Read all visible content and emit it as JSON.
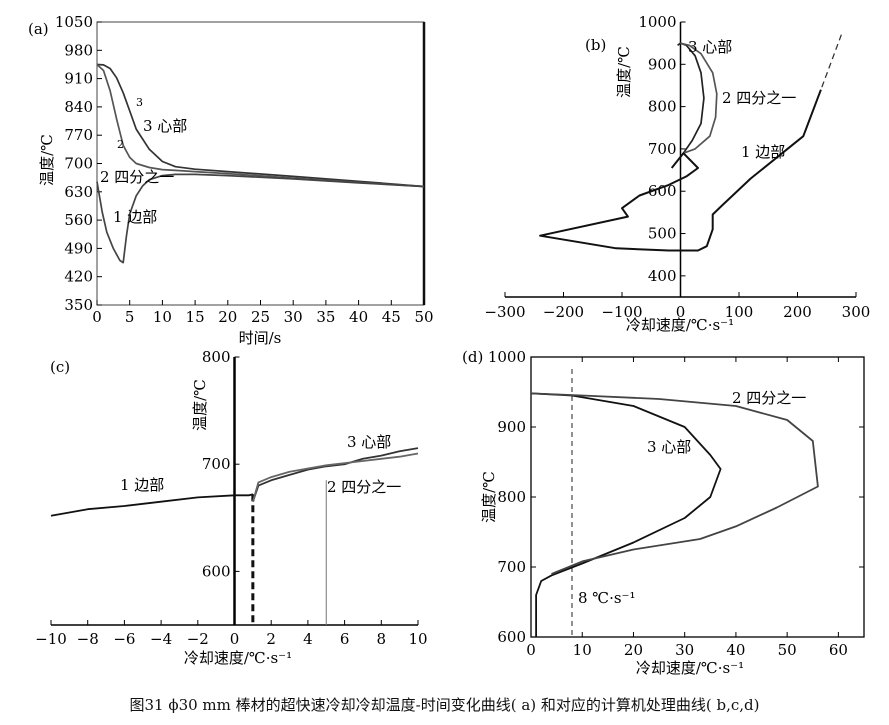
{
  "caption": "图31 ϕ30 mm 棒材的超快速冷却冷却温度-时间变化曲线( a) 和对应的计算机处理曲线( b,c,d)",
  "chart_data": [
    {
      "panel": "(a)",
      "type": "line",
      "xlabel": "时间/s",
      "ylabel": "温度/℃",
      "xlim": [
        0,
        50
      ],
      "ylim": [
        350,
        1050
      ],
      "xticks": [
        "0",
        "5",
        "10",
        "15",
        "20",
        "25",
        "30",
        "35",
        "40",
        "45",
        "50"
      ],
      "yticks": [
        "350",
        "420",
        "490",
        "560",
        "630",
        "700",
        "770",
        "840",
        "910",
        "980",
        "1050"
      ],
      "series": [
        {
          "name": "3 心部",
          "x": [
            0,
            1,
            2,
            3,
            4,
            5,
            6,
            8,
            10,
            12,
            15,
            20,
            30,
            40,
            50
          ],
          "y": [
            945,
            944,
            935,
            912,
            875,
            830,
            785,
            735,
            705,
            692,
            686,
            680,
            668,
            656,
            643
          ]
        },
        {
          "name": "2 四分之一",
          "x": [
            0,
            1,
            2,
            3,
            4,
            5,
            6,
            8,
            10,
            12,
            15,
            20,
            30,
            40,
            50
          ],
          "y": [
            945,
            930,
            880,
            810,
            745,
            715,
            700,
            690,
            685,
            683,
            680,
            675,
            664,
            653,
            643
          ]
        },
        {
          "name": "1 边部",
          "x": [
            0,
            0.8,
            1.5,
            2.5,
            3.5,
            4,
            4.5,
            5,
            6,
            7,
            8,
            10,
            12,
            15,
            20,
            30,
            40,
            50
          ],
          "y": [
            655,
            580,
            530,
            490,
            460,
            455,
            520,
            575,
            620,
            645,
            660,
            670,
            673,
            673,
            670,
            662,
            652,
            643
          ]
        }
      ],
      "annotations": [
        "3",
        "2",
        "3 心部",
        "2 四分之一",
        "1 边部"
      ]
    },
    {
      "panel": "(b)",
      "type": "line",
      "xlabel": "冷却速度/℃·s⁻¹",
      "ylabel": "温度/℃",
      "xlim": [
        -300,
        300
      ],
      "ylim": [
        350,
        1000
      ],
      "xticks": [
        "-300",
        "-200",
        "-100",
        "0",
        "100",
        "200",
        "300"
      ],
      "yticks": [
        "400",
        "500",
        "600",
        "700",
        "800",
        "900",
        "1000"
      ],
      "series": [
        {
          "name": "3 心部",
          "x": [
            -5,
            0,
            10,
            25,
            35,
            40,
            35,
            20,
            5
          ],
          "y": [
            945,
            950,
            945,
            920,
            880,
            820,
            760,
            720,
            690
          ]
        },
        {
          "name": "2 四分之一",
          "x": [
            0,
            15,
            35,
            55,
            62,
            60,
            50,
            25,
            5
          ],
          "y": [
            950,
            945,
            925,
            880,
            830,
            775,
            730,
            700,
            690
          ]
        },
        {
          "name": "1 边部",
          "x": [
            275,
            240,
            210,
            120,
            70,
            55,
            55,
            45,
            30,
            -20,
            -110,
            -240,
            -90,
            -100,
            -70,
            -20,
            10,
            30,
            5,
            -15
          ],
          "y": [
            970,
            840,
            730,
            630,
            565,
            545,
            510,
            470,
            460,
            460,
            465,
            495,
            540,
            560,
            590,
            615,
            635,
            655,
            690,
            655
          ]
        }
      ],
      "annotations": [
        "3 心部",
        "2 四分之一",
        "1 边部"
      ]
    },
    {
      "panel": "(c)",
      "type": "line",
      "xlabel": "冷却速度/℃·s⁻¹",
      "ylabel": "温度/℃",
      "xlim": [
        -10,
        10
      ],
      "ylim": [
        550,
        800
      ],
      "xticks": [
        "-10",
        "-8",
        "-6",
        "-4",
        "-2",
        "0",
        "2",
        "4",
        "6",
        "8",
        "10"
      ],
      "yticks": [
        "600",
        "700",
        "800"
      ],
      "series": [
        {
          "name": "1 边部",
          "x": [
            -10,
            -8,
            -6,
            -4,
            -2,
            0,
            0.8,
            1
          ],
          "y": [
            652,
            658,
            661,
            665,
            669,
            671,
            671,
            672
          ]
        },
        {
          "name": "3 心部",
          "x": [
            1,
            1.3,
            2,
            3,
            4,
            5,
            6,
            7,
            8,
            9,
            10
          ],
          "y": [
            665,
            680,
            685,
            690,
            695,
            698,
            700,
            705,
            708,
            712,
            715
          ]
        },
        {
          "name": "2 四分之一",
          "x": [
            1,
            1.3,
            2,
            3,
            4,
            5,
            6,
            7,
            8,
            9,
            10
          ],
          "y": [
            665,
            683,
            688,
            693,
            696,
            699,
            701,
            703,
            705,
            707,
            710
          ]
        }
      ],
      "annotations": [
        "1 边部",
        "3 心部",
        "2 四分之一"
      ]
    },
    {
      "panel": "(d)",
      "type": "line",
      "xlabel": "冷却速度/℃·s⁻¹",
      "ylabel": "温度/℃",
      "xlim": [
        0,
        65
      ],
      "ylim": [
        600,
        1000
      ],
      "xticks": [
        "0",
        "10",
        "20",
        "30",
        "40",
        "50",
        "60"
      ],
      "yticks": [
        "600",
        "700",
        "800",
        "900",
        "1000"
      ],
      "series": [
        {
          "name": "3 心部",
          "x": [
            0,
            8,
            20,
            30,
            35,
            37,
            35,
            30,
            20,
            10,
            4,
            2,
            1,
            1
          ],
          "y": [
            948,
            945,
            930,
            900,
            860,
            840,
            800,
            770,
            735,
            705,
            688,
            680,
            660,
            600
          ]
        },
        {
          "name": "2 四分之一",
          "x": [
            0,
            10,
            25,
            40,
            50,
            55,
            56,
            48,
            40,
            33,
            20,
            10,
            4
          ],
          "y": [
            948,
            945,
            940,
            930,
            910,
            880,
            815,
            785,
            758,
            740,
            725,
            708,
            690
          ]
        }
      ],
      "annotations": [
        "2 四分之一",
        "3 心部",
        "8 ℃·s⁻¹"
      ]
    }
  ]
}
